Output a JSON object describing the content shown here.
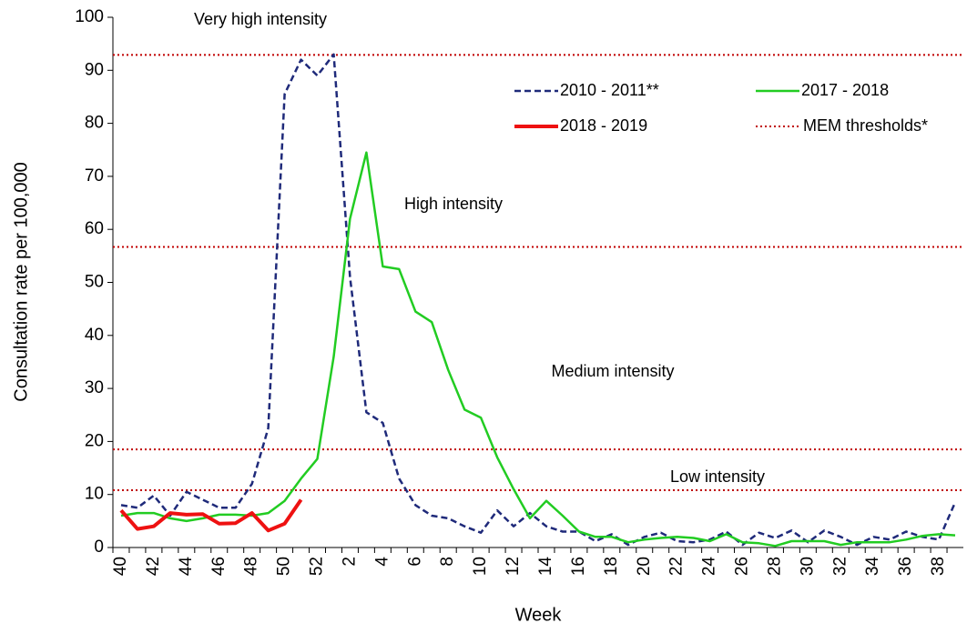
{
  "chart_data": {
    "type": "line",
    "y_label": "Consultation rate per 100,000",
    "x_label": "Week",
    "categories": [
      "40",
      null,
      "42",
      null,
      "44",
      null,
      "46",
      null,
      "48",
      null,
      "50",
      null,
      "52",
      null,
      "2",
      null,
      "4",
      null,
      "6",
      null,
      "8",
      null,
      "10",
      null,
      "12",
      null,
      "14",
      null,
      "16",
      null,
      "18",
      null,
      "20",
      null,
      "22",
      null,
      "24",
      null,
      "26",
      null,
      "28",
      null,
      "30",
      null,
      "32",
      null,
      "34",
      null,
      "36",
      null,
      "38",
      null
    ],
    "series": [
      {
        "name": "2010 - 2011**",
        "color": "#1f2a7a",
        "dashed": true,
        "values": [
          8,
          7.5,
          9.8,
          6,
          10.5,
          9,
          7.5,
          7.5,
          12,
          22.5,
          85.5,
          92,
          89,
          93,
          51,
          25.5,
          23.5,
          13,
          8,
          6,
          5.5,
          4,
          2.8,
          7,
          4,
          6.5,
          4,
          3,
          3,
          1.2,
          2.5,
          0.5,
          2,
          2.8,
          1.2,
          1,
          1.5,
          3,
          0.5,
          2.8,
          1.8,
          3.2,
          1,
          3.2,
          2,
          0.5,
          2,
          1.5,
          3,
          2,
          1.5,
          8.5
        ]
      },
      {
        "name": "2017 - 2018",
        "color": "#22cc22",
        "dashed": false,
        "values": [
          6,
          6.5,
          6.5,
          5.5,
          5,
          5.5,
          6.2,
          6.2,
          6,
          6.5,
          8.8,
          13,
          16.7,
          36,
          62,
          74.5,
          53,
          52.5,
          44.5,
          42.5,
          33.5,
          26,
          24.5,
          17,
          11,
          5.5,
          8.8,
          6,
          3,
          2,
          2,
          1,
          1.5,
          1.8,
          2,
          1.8,
          1.2,
          2.5,
          1,
          0.8,
          0.3,
          1.2,
          1.2,
          1.2,
          0.5,
          1,
          1,
          1,
          1.5,
          2.2,
          2.5,
          2.3
        ]
      },
      {
        "name": "2018 - 2019",
        "color": "#ee1111",
        "dashed": false,
        "values": [
          7,
          3.5,
          4,
          6.5,
          6.2,
          6.3,
          4.5,
          4.6,
          6.5,
          3.2,
          4.5,
          9,
          null,
          null,
          null,
          null,
          null,
          null,
          null,
          null,
          null,
          null,
          null,
          null,
          null,
          null,
          null,
          null,
          null,
          null,
          null,
          null,
          null,
          null,
          null,
          null,
          null,
          null,
          null,
          null,
          null,
          null,
          null,
          null,
          null,
          null,
          null,
          null,
          null,
          null,
          null,
          null
        ]
      }
    ],
    "thresholds": {
      "name": "MEM thresholds*",
      "color": "#c00000",
      "values": [
        10.8,
        18.5,
        56.7,
        92.9
      ]
    },
    "annotations": [
      "Low intensity",
      "Medium intensity",
      "High intensity",
      "Very high intensity"
    ],
    "ylim": [
      0,
      100
    ],
    "yticks": [
      0,
      10,
      20,
      30,
      40,
      50,
      60,
      70,
      80,
      90,
      100
    ],
    "grid": false
  }
}
